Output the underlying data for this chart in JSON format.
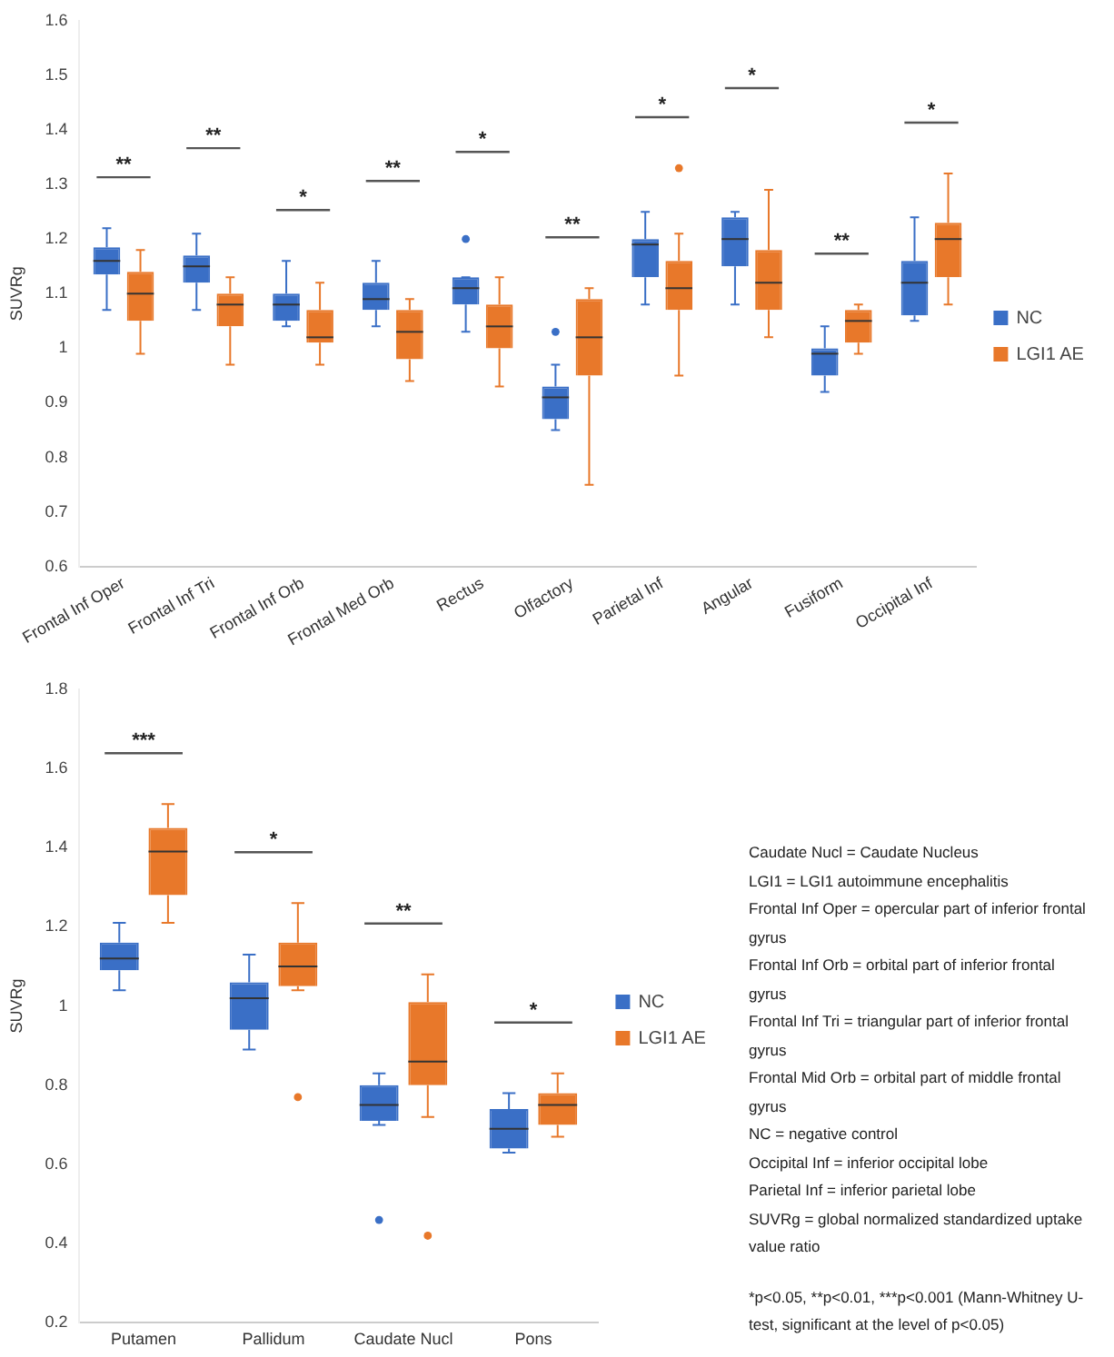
{
  "chart_data": [
    {
      "type": "box",
      "ylabel": "SUVRg",
      "categories": [
        "Frontal Inf Oper",
        "Frontal Inf Tri",
        "Frontal Inf Orb",
        "Frontal Med Orb",
        "Rectus",
        "Olfactory",
        "Parietal Inf",
        "Angular",
        "Fusiform",
        "Occipital Inf"
      ],
      "ylim": [
        0.6,
        1.6
      ],
      "yticks": [
        0.6,
        0.7,
        0.8,
        0.9,
        1,
        1.1,
        1.2,
        1.3,
        1.4,
        1.5,
        1.6
      ],
      "grid": false,
      "legend": "right",
      "series": [
        {
          "name": "NC",
          "color": "#3a6fc6",
          "boxes": [
            {
              "low": 1.07,
              "q1": 1.135,
              "median": 1.16,
              "q3": 1.185,
              "high": 1.22
            },
            {
              "low": 1.07,
              "q1": 1.12,
              "median": 1.15,
              "q3": 1.17,
              "high": 1.21
            },
            {
              "low": 1.04,
              "q1": 1.05,
              "median": 1.08,
              "q3": 1.1,
              "high": 1.16
            },
            {
              "low": 1.04,
              "q1": 1.07,
              "median": 1.09,
              "q3": 1.12,
              "high": 1.16
            },
            {
              "low": 1.03,
              "q1": 1.08,
              "median": 1.11,
              "q3": 1.13,
              "high": 1.13,
              "outliers": [
                1.2
              ]
            },
            {
              "low": 0.85,
              "q1": 0.87,
              "median": 0.91,
              "q3": 0.93,
              "high": 0.97,
              "outliers": [
                1.03
              ]
            },
            {
              "low": 1.08,
              "q1": 1.13,
              "median": 1.19,
              "q3": 1.2,
              "high": 1.25
            },
            {
              "low": 1.08,
              "q1": 1.15,
              "median": 1.2,
              "q3": 1.24,
              "high": 1.25
            },
            {
              "low": 0.92,
              "q1": 0.95,
              "median": 0.99,
              "q3": 1,
              "high": 1.04
            },
            {
              "low": 1.05,
              "q1": 1.06,
              "median": 1.12,
              "q3": 1.16,
              "high": 1.24
            }
          ]
        },
        {
          "name": "LGI1 AE",
          "color": "#e8782a",
          "boxes": [
            {
              "low": 0.99,
              "q1": 1.05,
              "median": 1.1,
              "q3": 1.14,
              "high": 1.18
            },
            {
              "low": 0.97,
              "q1": 1.04,
              "median": 1.08,
              "q3": 1.1,
              "high": 1.13
            },
            {
              "low": 0.97,
              "q1": 1.01,
              "median": 1.02,
              "q3": 1.07,
              "high": 1.12
            },
            {
              "low": 0.94,
              "q1": 0.98,
              "median": 1.03,
              "q3": 1.07,
              "high": 1.09
            },
            {
              "low": 0.93,
              "q1": 1,
              "median": 1.04,
              "q3": 1.08,
              "high": 1.13
            },
            {
              "low": 0.75,
              "q1": 0.95,
              "median": 1.02,
              "q3": 1.09,
              "high": 1.11
            },
            {
              "low": 0.95,
              "q1": 1.07,
              "median": 1.11,
              "q3": 1.16,
              "high": 1.21,
              "outliers": [
                1.33
              ]
            },
            {
              "low": 1.02,
              "q1": 1.07,
              "median": 1.12,
              "q3": 1.18,
              "high": 1.29
            },
            {
              "low": 0.99,
              "q1": 1.01,
              "median": 1.05,
              "q3": 1.07,
              "high": 1.08
            },
            {
              "low": 1.08,
              "q1": 1.13,
              "median": 1.2,
              "q3": 1.23,
              "high": 1.32
            }
          ]
        }
      ],
      "annotations": [
        "**",
        "**",
        "*",
        "**",
        "*",
        "**",
        "*",
        "*",
        "**",
        "*"
      ]
    },
    {
      "type": "box",
      "ylabel": "SUVRg",
      "categories": [
        "Putamen",
        "Pallidum",
        "Caudate Nucl",
        "Pons"
      ],
      "ylim": [
        0.2,
        1.8
      ],
      "yticks": [
        0.2,
        0.4,
        0.6,
        0.8,
        1,
        1.2,
        1.4,
        1.6,
        1.8
      ],
      "grid": false,
      "legend": "right",
      "series": [
        {
          "name": "NC",
          "color": "#3a6fc6",
          "boxes": [
            {
              "low": 1.04,
              "q1": 1.09,
              "median": 1.12,
              "q3": 1.16,
              "high": 1.21
            },
            {
              "low": 0.89,
              "q1": 0.94,
              "median": 1.02,
              "q3": 1.06,
              "high": 1.13
            },
            {
              "low": 0.7,
              "q1": 0.71,
              "median": 0.75,
              "q3": 0.8,
              "high": 0.83,
              "outliers": [
                0.46
              ]
            },
            {
              "low": 0.63,
              "q1": 0.64,
              "median": 0.69,
              "q3": 0.74,
              "high": 0.78
            }
          ]
        },
        {
          "name": "LGI1 AE",
          "color": "#e8782a",
          "boxes": [
            {
              "low": 1.21,
              "q1": 1.28,
              "median": 1.39,
              "q3": 1.45,
              "high": 1.51
            },
            {
              "low": 1.04,
              "q1": 1.05,
              "median": 1.1,
              "q3": 1.16,
              "high": 1.26,
              "outliers": [
                0.77
              ]
            },
            {
              "low": 0.72,
              "q1": 0.8,
              "median": 0.86,
              "q3": 1.01,
              "high": 1.08,
              "outliers": [
                0.42
              ]
            },
            {
              "low": 0.67,
              "q1": 0.7,
              "median": 0.75,
              "q3": 0.78,
              "high": 0.83
            }
          ]
        }
      ],
      "annotations": [
        "***",
        "*",
        "**",
        "*"
      ]
    },
    {
      "type": "other",
      "annotations": [
        "Caudate Nucl = Caudate Nucleus",
        "LGI1 = LGI1 autoimmune encephalitis",
        "Frontal Inf Oper = opercular part of inferior frontal gyrus",
        "Frontal Inf Orb = orbital part of inferior frontal gyrus",
        "Frontal Inf Tri = triangular part of inferior frontal gyrus",
        "Frontal Mid Orb = orbital part of middle frontal gyrus",
        "NC = negative control",
        "Occipital Inf = inferior occipital lobe",
        "Parietal Inf = inferior parietal lobe",
        "SUVRg = global normalized standardized uptake value ratio",
        "*p<0.05, **p<0.01, ***p<0.001 (Mann-Whitney U-test, significant at the level of p<0.05)"
      ]
    }
  ]
}
